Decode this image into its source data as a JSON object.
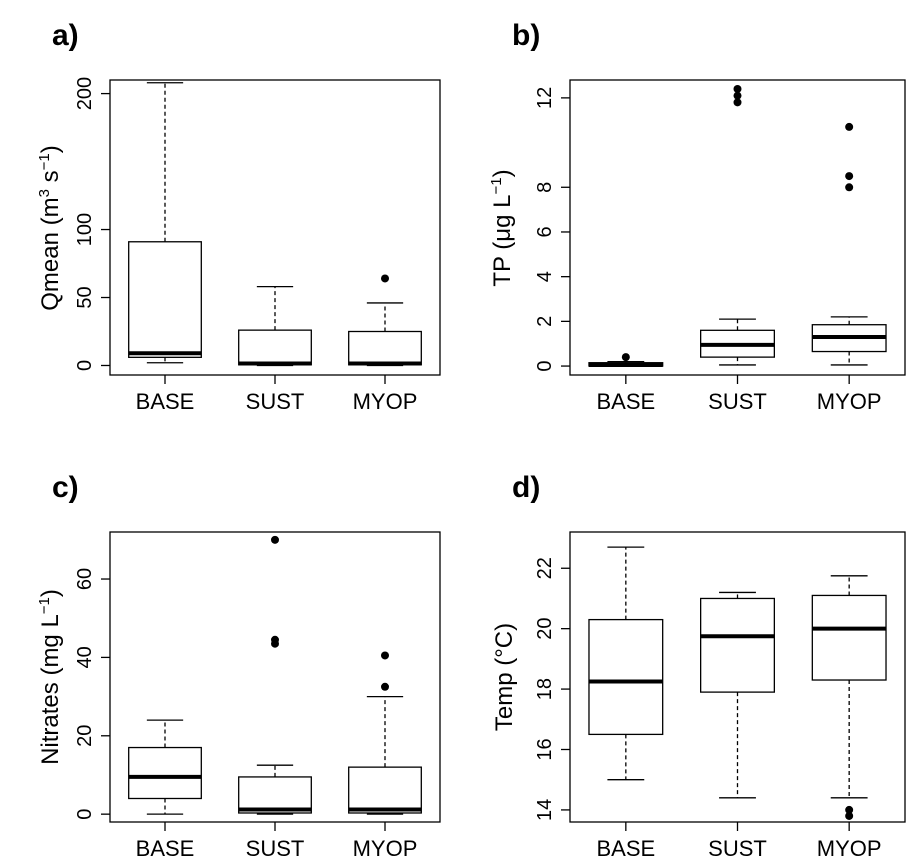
{
  "chart_data": [
    {
      "type": "box",
      "panel_label": "a)",
      "categories": [
        "BASE",
        "SUST",
        "MYOP"
      ],
      "ylabel": {
        "base": "Qmean (m",
        "sup1": "3",
        "mid": " s",
        "sup2": "−1",
        "end": ")"
      },
      "ylim": [
        -7,
        210
      ],
      "yticks": [
        0,
        50,
        100,
        200
      ],
      "boxes": [
        {
          "min": 2,
          "q1": 6,
          "median": 9,
          "q3": 91,
          "max": 208,
          "outliers": []
        },
        {
          "min": 0,
          "q1": 0.5,
          "median": 1.5,
          "q3": 26,
          "max": 58,
          "outliers": []
        },
        {
          "min": 0,
          "q1": 0.5,
          "median": 1.5,
          "q3": 25,
          "max": 46,
          "outliers": [
            64
          ]
        }
      ]
    },
    {
      "type": "box",
      "panel_label": "b)",
      "categories": [
        "BASE",
        "SUST",
        "MYOP"
      ],
      "ylabel": {
        "base": "TP (μg L",
        "sup1": "−1",
        "end": ")"
      },
      "ylim": [
        -0.4,
        12.8
      ],
      "yticks": [
        0,
        2,
        4,
        6,
        8,
        12
      ],
      "boxes": [
        {
          "min": 0,
          "q1": 0,
          "median": 0.05,
          "q3": 0.15,
          "max": 0.2,
          "outliers": [
            0.4
          ]
        },
        {
          "min": 0.05,
          "q1": 0.4,
          "median": 0.95,
          "q3": 1.6,
          "max": 2.1,
          "outliers": [
            11.8,
            12.1,
            12.4
          ]
        },
        {
          "min": 0.05,
          "q1": 0.65,
          "median": 1.3,
          "q3": 1.85,
          "max": 2.2,
          "outliers": [
            8.0,
            8.5,
            10.7
          ]
        }
      ]
    },
    {
      "type": "box",
      "panel_label": "c)",
      "categories": [
        "BASE",
        "SUST",
        "MYOP"
      ],
      "ylabel": {
        "base": "Nitrates (mg L",
        "sup1": "−1",
        "end": ")"
      },
      "ylim": [
        -2,
        72
      ],
      "yticks": [
        0,
        20,
        40,
        60
      ],
      "boxes": [
        {
          "min": 0,
          "q1": 4,
          "median": 9.5,
          "q3": 17,
          "max": 24,
          "outliers": []
        },
        {
          "min": 0,
          "q1": 0.3,
          "median": 1.2,
          "q3": 9.5,
          "max": 12.5,
          "outliers": [
            43.5,
            44.5,
            70
          ]
        },
        {
          "min": 0,
          "q1": 0.3,
          "median": 1.2,
          "q3": 12,
          "max": 30,
          "outliers": [
            32.5,
            40.5
          ]
        }
      ]
    },
    {
      "type": "box",
      "panel_label": "d)",
      "categories": [
        "BASE",
        "SUST",
        "MYOP"
      ],
      "ylabel": {
        "base": "Temp (°C)"
      },
      "ylim": [
        13.6,
        23.2
      ],
      "yticks": [
        14,
        16,
        18,
        20,
        22
      ],
      "boxes": [
        {
          "min": 15.0,
          "q1": 16.5,
          "median": 18.25,
          "q3": 20.3,
          "max": 22.7,
          "outliers": []
        },
        {
          "min": 14.4,
          "q1": 17.9,
          "median": 19.75,
          "q3": 21.0,
          "max": 21.2,
          "outliers": []
        },
        {
          "min": 14.4,
          "q1": 18.3,
          "median": 20.0,
          "q3": 21.1,
          "max": 21.75,
          "outliers": [
            13.8,
            14.0
          ]
        }
      ]
    }
  ]
}
